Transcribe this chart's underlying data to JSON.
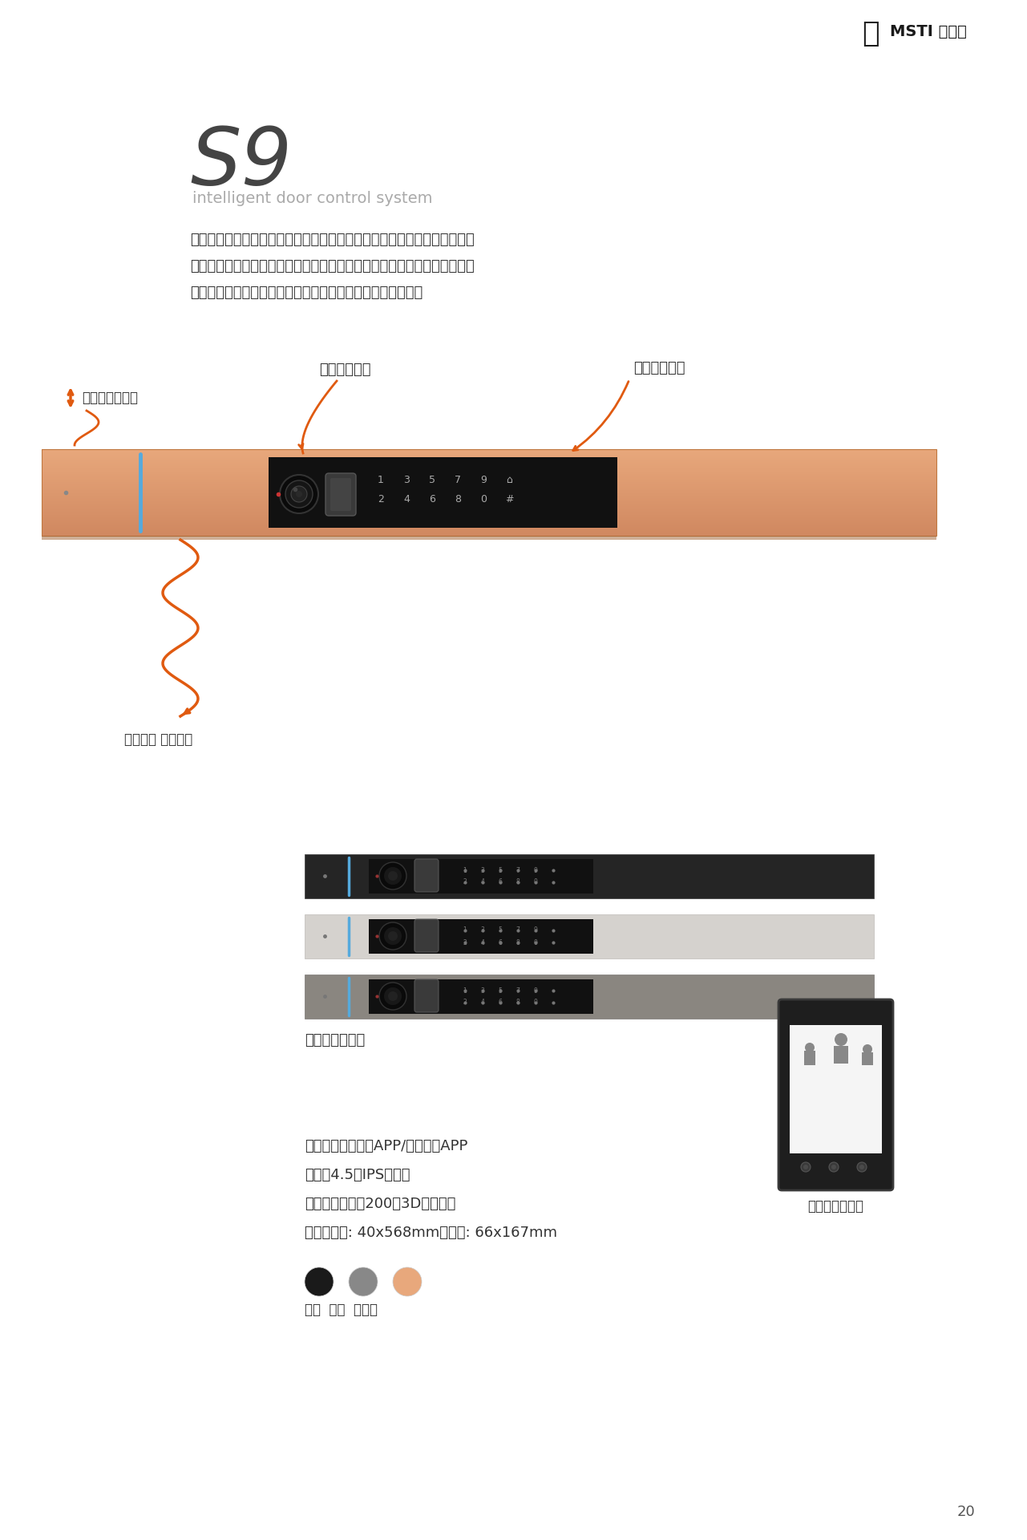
{
  "bg_color": "#ffffff",
  "logo_text": "MSTI 马斯汀",
  "title_s9": "S9",
  "subtitle": "intelligent door control system",
  "desc_lines": [
    "别出心裁的智能门控面板、拉手一体化设计，是人体力学与美学的共存、是",
    "精湛工艺与智能科技的融合，呼献无懒可击、天花板颜値、极致品质、安全",
    "舒适兼具的作品，激发生活的灵感，开启未来智能人居空间。"
  ],
  "annotation1_label": "隐藏式锁芯设计",
  "annotation2_label": "猫眼视频对讲",
  "annotation3_label": "急速识别面板",
  "annotation4_label": "智能灯光 琰目耀然",
  "catview_label": "猫眼版横置拉手",
  "spec_line1": "网络：马斯汀智能APP/兼容涂鸦APP",
  "spec_line2": "猫眼：4.5寸IPS高清屏",
  "spec_line3": "人脸识别：双目200万3D人脸识别",
  "spec_line4": "尺寸：前置: 40x568mm，后置: 66x167mm",
  "color_label1": "黑色",
  "color_label2": "灰色",
  "color_label3": "珫瑞金",
  "smart_panel_label": "智能门控背面板",
  "page_number": "20",
  "door_color_gold": "#e8a87c",
  "door_shadow": "#c07840",
  "door_color_black": "#2d2d2d",
  "door_color_silver": "#d8d5d0",
  "door_color_gray": "#888580",
  "accent_color": "#e05a10",
  "blue_line_color": "#55aadd",
  "panel_bg": "#1a1a1a",
  "text_color": "#333333",
  "light_text": "#888888"
}
